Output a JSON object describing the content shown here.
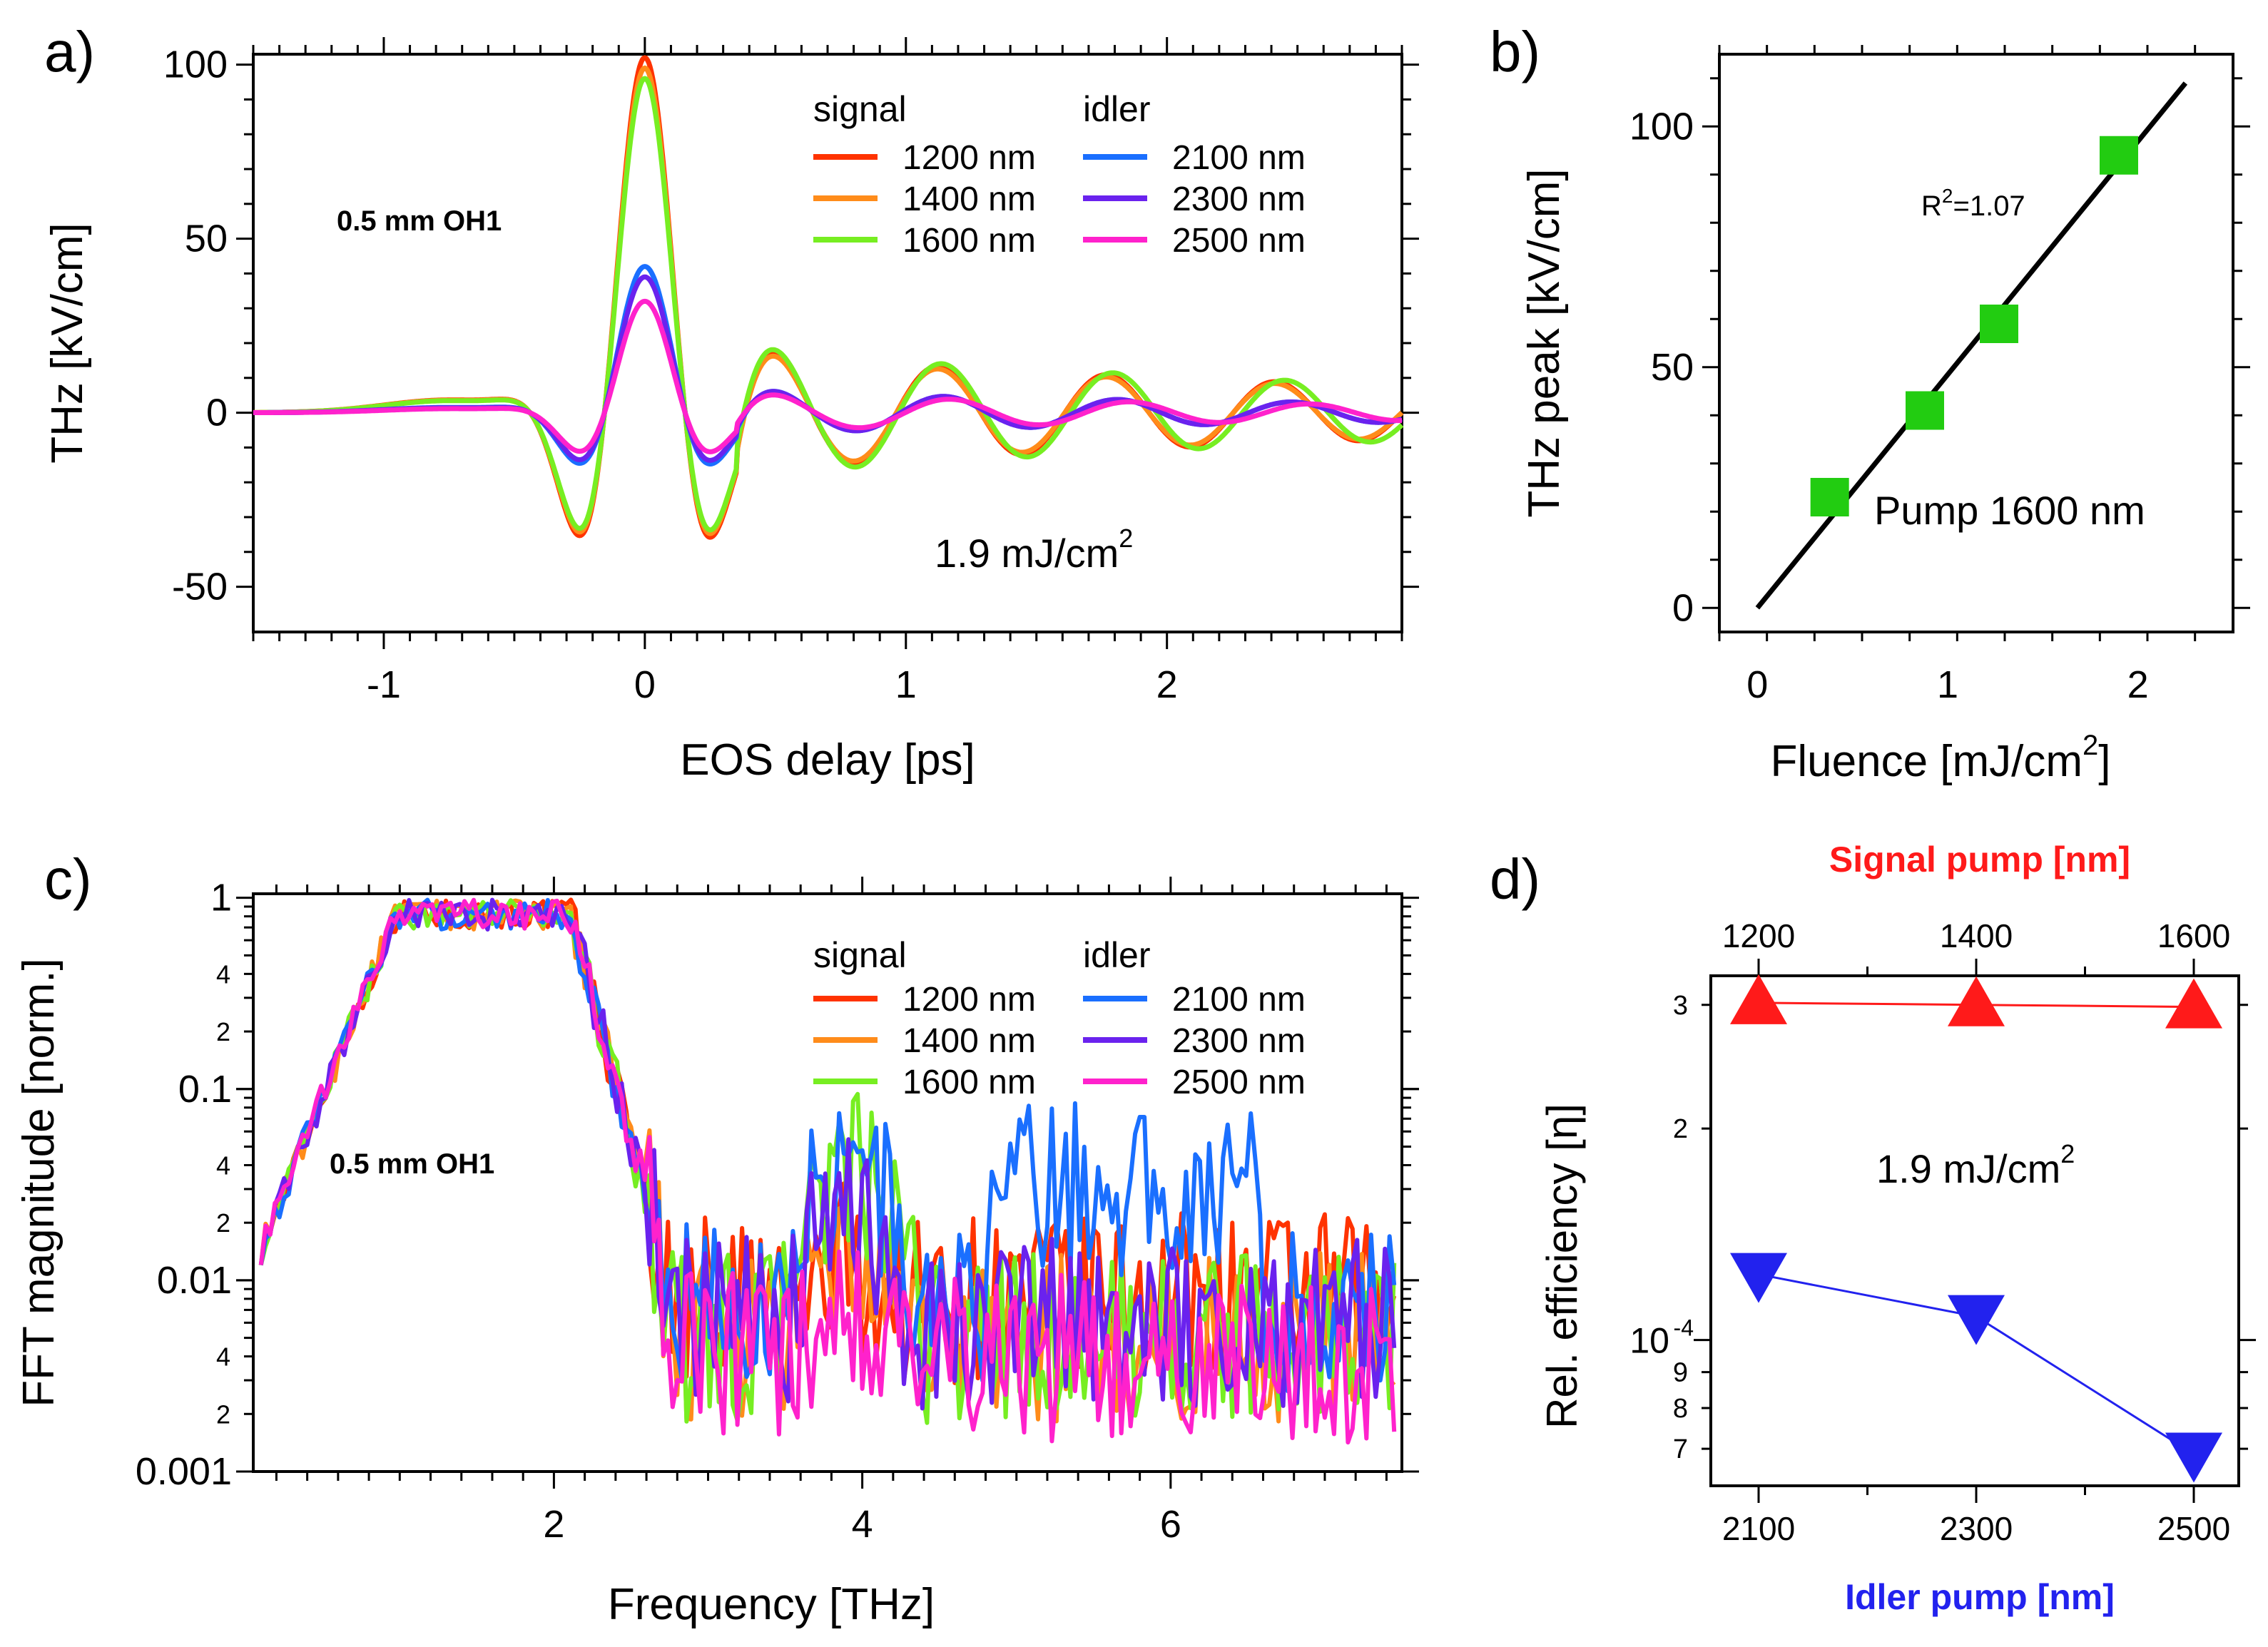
{
  "panel_labels": {
    "a": "a)",
    "b": "b)",
    "c": "c)",
    "d": "d)"
  },
  "legend": {
    "signal_title": "signal",
    "idler_title": "idler",
    "signal": [
      {
        "label": "1200 nm",
        "color": "#ff3300"
      },
      {
        "label": "1400 nm",
        "color": "#ff8c1a"
      },
      {
        "label": "1600 nm",
        "color": "#77ee22"
      }
    ],
    "idler": [
      {
        "label": "2100 nm",
        "color": "#1a6fff"
      },
      {
        "label": "2300 nm",
        "color": "#6a22ee"
      },
      {
        "label": "2500 nm",
        "color": "#ff22cc"
      }
    ]
  },
  "chart_data": [
    {
      "id": "a",
      "type": "line",
      "title": "",
      "xlabel": "EOS delay [ps]",
      "ylabel": "THz [kV/cm]",
      "xlim": [
        -1.5,
        2.9
      ],
      "ylim": [
        -63,
        103
      ],
      "xticks": [
        -1,
        0,
        1,
        2
      ],
      "xtick_labels": [
        "-1",
        "0",
        "1",
        "2"
      ],
      "yticks": [
        -50,
        0,
        50,
        100
      ],
      "ytick_labels": [
        "-50",
        "0",
        "50",
        "100"
      ],
      "annotations": {
        "crystal": "0.5 mm OH1",
        "fluence": "1.9 mJ/cm",
        "fluence_sup": "2"
      },
      "model": "damped sine: main pulse A*exp(-(t/0.26)^2)*cos(2*pi*f*t) plus ringing tail B*exp(-t/3)*sin(2*pi*(t-0.2)/0.55)",
      "series": [
        {
          "name": "1200 nm",
          "color": "#ff3300",
          "amplitude": 102,
          "tail": 17,
          "freq": 1.55
        },
        {
          "name": "1400 nm",
          "color": "#ff8c1a",
          "amplitude": 99,
          "tail": 16,
          "freq": 1.55
        },
        {
          "name": "1600 nm",
          "color": "#77ee22",
          "amplitude": 96,
          "tail": 18,
          "freq": 1.52
        },
        {
          "name": "2100 nm",
          "color": "#1a6fff",
          "amplitude": 42,
          "tail": 6,
          "freq": 1.5
        },
        {
          "name": "2300 nm",
          "color": "#6a22ee",
          "amplitude": 39,
          "tail": 6,
          "freq": 1.5
        },
        {
          "name": "2500 nm",
          "color": "#ff22cc",
          "amplitude": 32,
          "tail": 5,
          "freq": 1.45
        }
      ]
    },
    {
      "id": "b",
      "type": "scatter",
      "title": "",
      "xlabel": "Fluence [mJ/cm",
      "xlabel_sup": "2",
      "xlabel_end": "]",
      "ylabel": "THz peak [kV/cm]",
      "xlim": [
        -0.2,
        2.5
      ],
      "ylim": [
        -5,
        115
      ],
      "xticks": [
        0,
        1,
        2
      ],
      "xtick_labels": [
        "0",
        "1",
        "2"
      ],
      "yticks": [
        0,
        50,
        100
      ],
      "ytick_labels": [
        "0",
        "50",
        "100"
      ],
      "points": {
        "x": [
          0.38,
          0.88,
          1.27,
          1.9
        ],
        "y": [
          23,
          41,
          59,
          94
        ],
        "color": "#22cc11"
      },
      "fit_line": {
        "x": [
          0,
          2.25
        ],
        "y": [
          0,
          109
        ]
      },
      "annotations": {
        "r2_prefix": "R",
        "r2_sup": "2",
        "r2_value": "=1.07",
        "pump": "Pump 1600 nm"
      }
    },
    {
      "id": "c",
      "type": "line",
      "title": "",
      "xlabel": "Frequency [THz]",
      "ylabel": "FFT magnitude [norm.]",
      "xscale": "linear",
      "yscale": "log",
      "xlim": [
        0.05,
        7.5
      ],
      "ylim": [
        0.001,
        1.05
      ],
      "xticks": [
        2,
        4,
        6
      ],
      "xtick_labels": [
        "2",
        "4",
        "6"
      ],
      "yticks_major": [
        0.001,
        0.01,
        0.1,
        1
      ],
      "ytick_labels": [
        "0.001",
        "0.01",
        "0.1",
        "1"
      ],
      "yticks_minor_labeled": [
        {
          "v": 0.002,
          "t": "2"
        },
        {
          "v": 0.004,
          "t": "4"
        },
        {
          "v": 0.02,
          "t": "2"
        },
        {
          "v": 0.04,
          "t": "4"
        },
        {
          "v": 0.2,
          "t": "2"
        },
        {
          "v": 0.4,
          "t": "4"
        }
      ],
      "annotations": {
        "crystal": "0.5 mm OH1"
      },
      "model": "normalized spectra: rise 0.15-1.0 THz, plateau to ~2.1 THz, drop near 2.6 THz, noisy floor 0.002-0.05",
      "series": [
        {
          "name": "1200 nm",
          "color": "#ff3300",
          "floor": 0.008,
          "bump_hi": 0.012
        },
        {
          "name": "1400 nm",
          "color": "#ff8c1a",
          "floor": 0.005,
          "bump_hi": 0.012
        },
        {
          "name": "1600 nm",
          "color": "#77ee22",
          "floor": 0.005,
          "bump_hi": 0.035
        },
        {
          "name": "2100 nm",
          "color": "#1a6fff",
          "floor": 0.007,
          "bump_hi": 0.04
        },
        {
          "name": "2300 nm",
          "color": "#6a22ee",
          "floor": 0.006,
          "bump_hi": 0.02
        },
        {
          "name": "2500 nm",
          "color": "#ff22cc",
          "floor": 0.004,
          "bump_hi": 0.008
        }
      ]
    },
    {
      "id": "d",
      "type": "line",
      "title": "",
      "ylabel": "Rel. efficiency [η]",
      "top_xlabel": "Signal pump [nm]",
      "bottom_xlabel": "Idler pump [nm]",
      "top_xticks": [
        1200,
        1400,
        1600
      ],
      "top_xtick_labels": [
        "1200",
        "1400",
        "1600"
      ],
      "bottom_xticks": [
        2100,
        2300,
        2500
      ],
      "bottom_xtick_labels": [
        "2100",
        "2300",
        "2500"
      ],
      "yscale": "log",
      "ylim": [
        6.2e-05,
        0.00033
      ],
      "ytick_labels": [
        {
          "v": 0.0003,
          "t": "3"
        },
        {
          "v": 0.0002,
          "t": "2"
        },
        {
          "v": 0.0001,
          "t": "10",
          "sup": "-4"
        },
        {
          "v": 9e-05,
          "t": "9"
        },
        {
          "v": 8e-05,
          "t": "8"
        },
        {
          "v": 7e-05,
          "t": "7"
        }
      ],
      "series": [
        {
          "name": "Signal pump",
          "axis": "top",
          "color": "#ff1a1a",
          "x": [
            1200,
            1400,
            1600
          ],
          "y": [
            0.000302,
            0.0003,
            0.000298
          ],
          "marker": "triangle-up"
        },
        {
          "name": "Idler pump",
          "axis": "bottom",
          "color": "#2222ee",
          "x": [
            2100,
            2300,
            2500
          ],
          "y": [
            0.000124,
            0.000108,
            6.88e-05
          ],
          "marker": "triangle-down"
        }
      ],
      "annotations": {
        "fluence": "1.9 mJ/cm",
        "fluence_sup": "2"
      }
    }
  ]
}
